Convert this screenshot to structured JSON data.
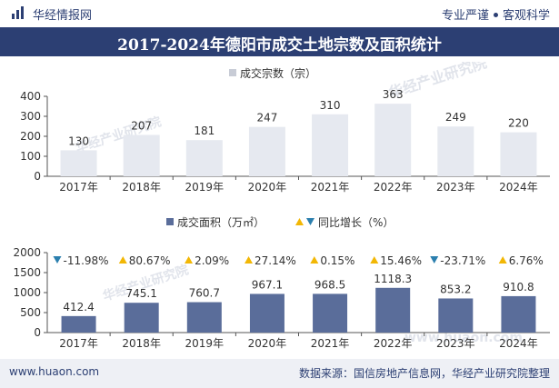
{
  "header": {
    "brand": "华经情报网",
    "tagline_left": "专业严谨",
    "tagline_right": "客观科学",
    "logo_icon": "huajing-logo-icon"
  },
  "title": "2017-2024年德阳市成交土地宗数及面积统计",
  "footer": {
    "url": "www.huaon.com",
    "source": "数据来源：国信房地产信息网，华经产业研究院整理"
  },
  "watermarks": [
    "华经产业研究院",
    "华经产业研究院",
    "华经产业研究院",
    "www.huaon.com"
  ],
  "colors": {
    "brand": "#2c3f73",
    "bar_top": "#e4e7ef",
    "bar_bottom": "#5a6d9a",
    "up": "#f2b705",
    "down": "#2b7fae"
  },
  "chart_data": [
    {
      "type": "bar",
      "categories": [
        "2017年",
        "2018年",
        "2019年",
        "2020年",
        "2021年",
        "2022年",
        "2023年",
        "2024年"
      ],
      "series": [
        {
          "name": "成交宗数（宗）",
          "values": [
            130,
            207,
            181,
            247,
            310,
            363,
            249,
            220
          ]
        }
      ],
      "ylim": [
        0,
        400
      ],
      "yticks": [
        0,
        100,
        200,
        300,
        400
      ],
      "legend": "top-center",
      "grid": false
    },
    {
      "type": "bar",
      "categories": [
        "2017年",
        "2018年",
        "2019年",
        "2020年",
        "2021年",
        "2022年",
        "2023年",
        "2024年"
      ],
      "series": [
        {
          "name": "成交面积（万㎡）",
          "values": [
            412.4,
            745.1,
            760.7,
            967.1,
            968.5,
            1118.3,
            853.2,
            910.8
          ]
        }
      ],
      "growth": {
        "name": "同比增长（%）",
        "labels": [
          "-11.98%",
          "80.67%",
          "2.09%",
          "27.14%",
          "0.15%",
          "15.46%",
          "-23.71%",
          "6.76%"
        ],
        "direction": [
          "down",
          "up",
          "up",
          "up",
          "up",
          "up",
          "down",
          "up"
        ]
      },
      "ylim": [
        0,
        2000
      ],
      "yticks": [
        0,
        500,
        1000,
        1500,
        2000
      ],
      "legend": "top-center",
      "grid": false
    }
  ]
}
